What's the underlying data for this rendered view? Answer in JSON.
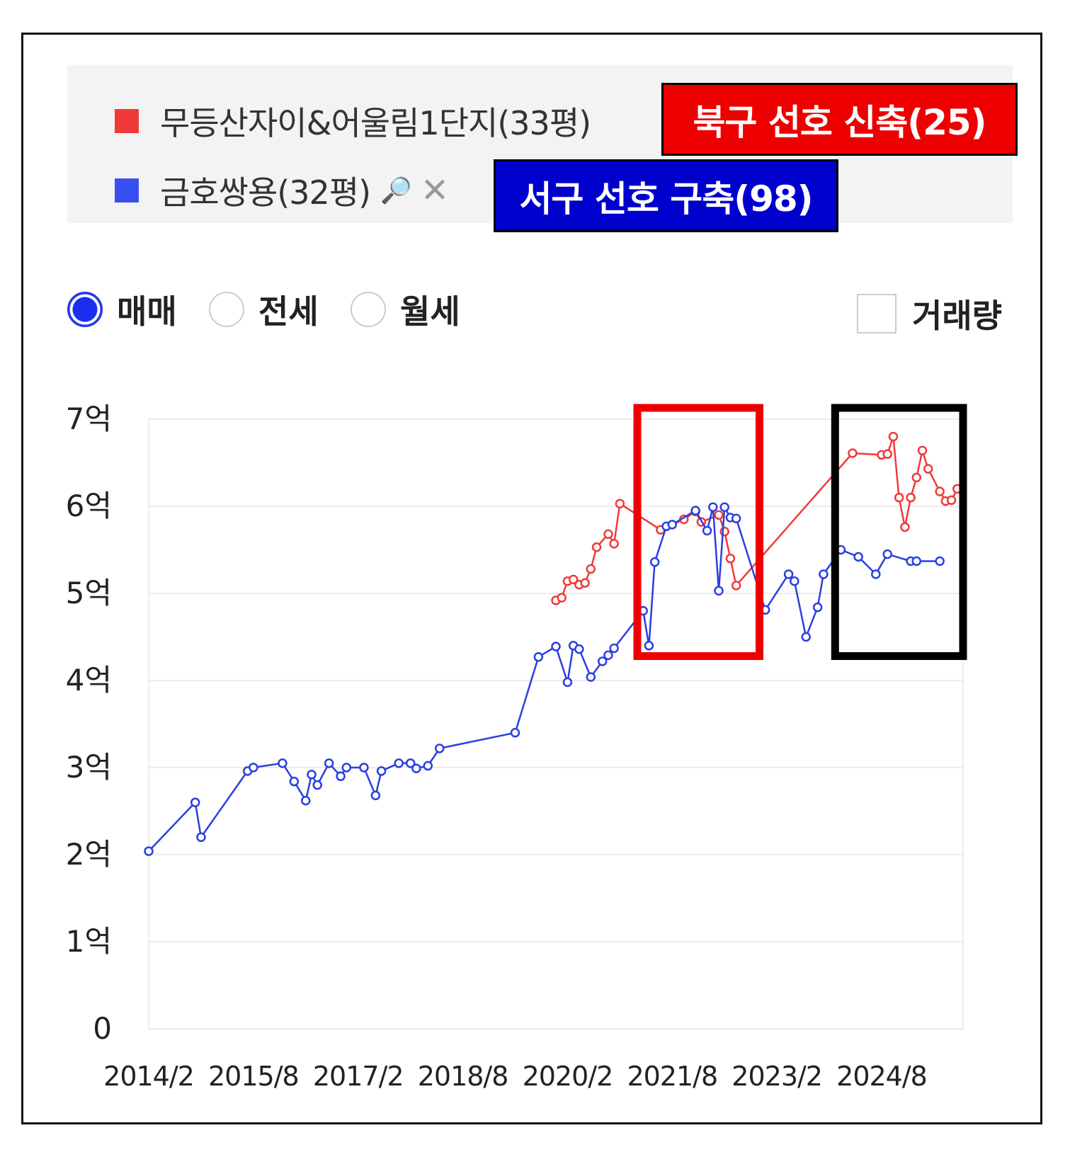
{
  "legend": {
    "items": [
      {
        "label": "무등산자이&어울림1단지(33평)",
        "color": "#f03a3a"
      },
      {
        "label": "금호쌍용(32평)",
        "color": "#3a4ff0",
        "search_icon": "🔎",
        "close_icon": "✕"
      }
    ]
  },
  "tags": {
    "red": "북구 선호 신축(25)",
    "blue": "서구 선호 구축(98)"
  },
  "controls": {
    "radios": [
      "매매",
      "전세",
      "월세"
    ],
    "selected": "매매",
    "checkbox_label": "거래량",
    "checkbox_checked": false
  },
  "chart_data": {
    "type": "line",
    "y_ticks": [
      "0",
      "1억",
      "2억",
      "3억",
      "4억",
      "5억",
      "6억",
      "7억"
    ],
    "ylim": [
      0,
      7
    ],
    "x_ticks": [
      "2014/2",
      "2015/8",
      "2017/2",
      "2018/8",
      "2020/2",
      "2021/8",
      "2023/2",
      "2024/8"
    ],
    "xlim": [
      "2014-02",
      "2025-10"
    ],
    "grid": true,
    "series": [
      {
        "name": "무등산자이&어울림1단지(33평)",
        "color": "#f03a3a",
        "points": [
          [
            "2019-12",
            4.92
          ],
          [
            "2020-01",
            4.95
          ],
          [
            "2020-02",
            5.14
          ],
          [
            "2020-03",
            5.16
          ],
          [
            "2020-04",
            5.1
          ],
          [
            "2020-05",
            5.12
          ],
          [
            "2020-06",
            5.28
          ],
          [
            "2020-07",
            5.53
          ],
          [
            "2020-09",
            5.68
          ],
          [
            "2020-10",
            5.57
          ],
          [
            "2020-11",
            6.03
          ],
          [
            "2021-06",
            5.73
          ],
          [
            "2021-10",
            5.85
          ],
          [
            "2021-12",
            5.94
          ],
          [
            "2022-01",
            5.82
          ],
          [
            "2022-04",
            5.9
          ],
          [
            "2022-05",
            5.71
          ],
          [
            "2022-06",
            5.4
          ],
          [
            "2022-07",
            5.09
          ],
          [
            "2024-03",
            6.61
          ],
          [
            "2024-08",
            6.59
          ],
          [
            "2024-09",
            6.6
          ],
          [
            "2024-10",
            6.8
          ],
          [
            "2024-11",
            6.1
          ],
          [
            "2024-12",
            5.76
          ],
          [
            "2025-01",
            6.1
          ],
          [
            "2025-02",
            6.33
          ],
          [
            "2025-03",
            6.64
          ],
          [
            "2025-04",
            6.43
          ],
          [
            "2025-06",
            6.17
          ],
          [
            "2025-07",
            6.06
          ],
          [
            "2025-08",
            6.07
          ],
          [
            "2025-09",
            6.2
          ]
        ]
      },
      {
        "name": "금호쌍용(32평)",
        "color": "#2a3fe0",
        "points": [
          [
            "2014-02",
            2.04
          ],
          [
            "2014-10",
            2.6
          ],
          [
            "2014-11",
            2.2
          ],
          [
            "2015-07",
            2.96
          ],
          [
            "2015-08",
            3.0
          ],
          [
            "2016-01",
            3.05
          ],
          [
            "2016-03",
            2.84
          ],
          [
            "2016-05",
            2.62
          ],
          [
            "2016-06",
            2.92
          ],
          [
            "2016-07",
            2.8
          ],
          [
            "2016-09",
            3.05
          ],
          [
            "2016-11",
            2.9
          ],
          [
            "2016-12",
            3.0
          ],
          [
            "2017-03",
            3.0
          ],
          [
            "2017-05",
            2.68
          ],
          [
            "2017-06",
            2.96
          ],
          [
            "2017-09",
            3.05
          ],
          [
            "2017-11",
            3.05
          ],
          [
            "2017-12",
            2.99
          ],
          [
            "2018-02",
            3.02
          ],
          [
            "2018-04",
            3.22
          ],
          [
            "2019-05",
            3.4
          ],
          [
            "2019-09",
            4.27
          ],
          [
            "2019-12",
            4.39
          ],
          [
            "2020-02",
            3.98
          ],
          [
            "2020-03",
            4.4
          ],
          [
            "2020-04",
            4.36
          ],
          [
            "2020-06",
            4.04
          ],
          [
            "2020-08",
            4.22
          ],
          [
            "2020-09",
            4.29
          ],
          [
            "2020-10",
            4.37
          ],
          [
            "2021-03",
            4.8
          ],
          [
            "2021-04",
            4.4
          ],
          [
            "2021-05",
            5.36
          ],
          [
            "2021-07",
            5.77
          ],
          [
            "2021-08",
            5.79
          ],
          [
            "2021-12",
            5.95
          ],
          [
            "2022-02",
            5.72
          ],
          [
            "2022-03",
            5.99
          ],
          [
            "2022-04",
            5.03
          ],
          [
            "2022-05",
            5.99
          ],
          [
            "2022-06",
            5.87
          ],
          [
            "2022-07",
            5.86
          ],
          [
            "2022-12",
            4.81
          ],
          [
            "2023-04",
            5.22
          ],
          [
            "2023-05",
            5.14
          ],
          [
            "2023-07",
            4.5
          ],
          [
            "2023-09",
            4.84
          ],
          [
            "2023-10",
            5.22
          ],
          [
            "2024-01",
            5.5
          ],
          [
            "2024-04",
            5.42
          ],
          [
            "2024-07",
            5.22
          ],
          [
            "2024-09",
            5.45
          ],
          [
            "2025-01",
            5.37
          ],
          [
            "2025-02",
            5.37
          ],
          [
            "2025-06",
            5.37
          ]
        ]
      }
    ],
    "annotation_boxes": [
      {
        "color": "#ee0000",
        "x_range": [
          "2021-02",
          "2022-11"
        ],
        "y_range": [
          4.28,
          7.13
        ]
      },
      {
        "color": "#000000",
        "x_range": [
          "2023-12",
          "2025-10"
        ],
        "y_range": [
          4.28,
          7.13
        ]
      }
    ]
  }
}
